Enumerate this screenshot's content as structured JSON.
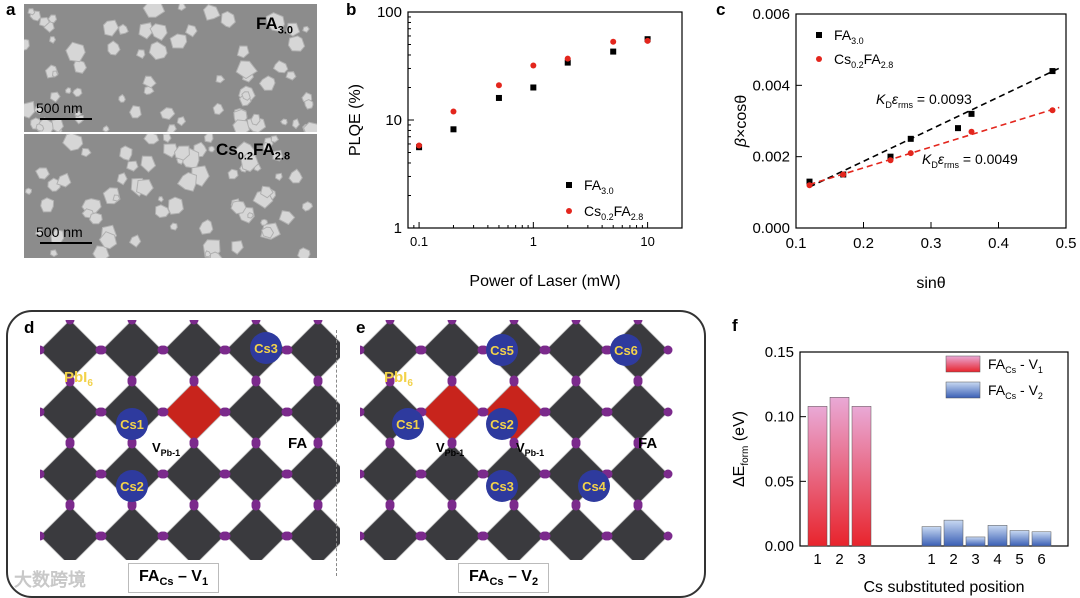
{
  "panels": {
    "a": {
      "letter": "a",
      "top_label": "FA",
      "top_sub": "3.0",
      "bottom_label_1": "Cs",
      "bottom_sub_1": "0.2",
      "bottom_label_2": "FA",
      "bottom_sub_2": "2.8",
      "scale_text_top": "500 nm",
      "scale_text_bottom": "500 nm"
    },
    "b": {
      "letter": "b"
    },
    "c": {
      "letter": "c"
    },
    "d": {
      "letter": "d",
      "pbi6": "PbI",
      "pbi6_sub": "6",
      "fa": "FA",
      "cs1": "Cs1",
      "cs2": "Cs2",
      "cs3": "Cs3",
      "vac": "V",
      "vac_sub": "Pb-1",
      "footer_main": "FA",
      "footer_sub": "Cs",
      "footer_tail": " – V",
      "footer_num": "1"
    },
    "e": {
      "letter": "e",
      "pbi6": "PbI",
      "pbi6_sub": "6",
      "fa": "FA",
      "cs1": "Cs1",
      "cs2": "Cs2",
      "cs3": "Cs3",
      "cs4": "Cs4",
      "cs5": "Cs5",
      "cs6": "Cs6",
      "vac": "V",
      "vac_sub": "Pb-1",
      "footer_main": "FA",
      "footer_sub": "Cs",
      "footer_tail": " – V",
      "footer_num": "2"
    },
    "f": {
      "letter": "f"
    }
  },
  "watermark": "大数跨境",
  "chart_data": [
    {
      "id": "b",
      "type": "scatter",
      "xlabel": "Power of Laser (mW)",
      "ylabel": "PLQE (%)",
      "xscale": "log",
      "yscale": "log",
      "xlim": [
        0.08,
        20
      ],
      "ylim": [
        1,
        100
      ],
      "xticks": [
        0.1,
        1,
        10
      ],
      "xtick_labels": [
        "0.1",
        "1",
        "10"
      ],
      "yticks": [
        1,
        10,
        100
      ],
      "ytick_labels": [
        "1",
        "10",
        "100"
      ],
      "legend_position": "bottom-right",
      "series": [
        {
          "name": "FA",
          "sub": "3.0",
          "color": "#000000",
          "marker": "square",
          "x": [
            0.1,
            0.2,
            0.5,
            1,
            2,
            5,
            10
          ],
          "y": [
            5.6,
            8.2,
            16,
            20,
            34,
            43,
            56
          ]
        },
        {
          "name": "Cs",
          "sub": "0.2",
          "name2": "FA",
          "sub2": "2.8",
          "color": "#e3261d",
          "marker": "circle",
          "x": [
            0.1,
            0.2,
            0.5,
            1,
            2,
            5,
            10
          ],
          "y": [
            5.8,
            12,
            21,
            32,
            37,
            53,
            54
          ]
        }
      ]
    },
    {
      "id": "c",
      "type": "scatter",
      "xlabel": "sinθ",
      "ylabel_pre": "β",
      "ylabel_post": "×cosθ",
      "xlim": [
        0.1,
        0.5
      ],
      "ylim": [
        0,
        0.006
      ],
      "xticks": [
        0.1,
        0.2,
        0.3,
        0.4,
        0.5
      ],
      "xtick_labels": [
        "0.1",
        "0.2",
        "0.3",
        "0.4",
        "0.5"
      ],
      "yticks": [
        0,
        0.002,
        0.004,
        0.006
      ],
      "ytick_labels": [
        "0.000",
        "0.002",
        "0.004",
        "0.006"
      ],
      "legend_position": "top-left",
      "series": [
        {
          "name": "FA",
          "sub": "3.0",
          "color": "#000000",
          "marker": "square",
          "x": [
            0.12,
            0.17,
            0.24,
            0.27,
            0.34,
            0.36,
            0.48
          ],
          "y": [
            0.0013,
            0.0015,
            0.002,
            0.0025,
            0.0028,
            0.0032,
            0.0044
          ],
          "fit": [
            [
              0.12,
              0.00115
            ],
            [
              0.49,
              0.00448
            ]
          ],
          "fit_label": "0.0093"
        },
        {
          "name": "Cs",
          "sub": "0.2",
          "name2": "FA",
          "sub2": "2.8",
          "color": "#e3261d",
          "marker": "circle",
          "x": [
            0.12,
            0.17,
            0.24,
            0.27,
            0.36,
            0.48
          ],
          "y": [
            0.0012,
            0.0015,
            0.0019,
            0.0021,
            0.0027,
            0.0033
          ],
          "fit": [
            [
              0.12,
              0.00122
            ],
            [
              0.49,
              0.00338
            ]
          ],
          "fit_label": "0.0049"
        }
      ],
      "annotation_prefix": "K",
      "annotation_sub": "D",
      "annotation_mid": "ε",
      "annotation_sub2": "rms",
      "annotation_eq": " = "
    },
    {
      "id": "f",
      "type": "bar",
      "xlabel": "Cs substituted position",
      "ylabel_pre": "ΔE",
      "ylabel_sub": "form",
      "ylabel_post": " (eV)",
      "ylim": [
        0,
        0.15
      ],
      "yticks": [
        0,
        0.05,
        0.1,
        0.15
      ],
      "ytick_labels": [
        "0.00",
        "0.05",
        "0.10",
        "0.15"
      ],
      "legend_position": "top-right",
      "series": [
        {
          "name": "FA",
          "sub": "Cs",
          "tail": " - V",
          "num": "1",
          "color_top": "#e9a9d6",
          "color_bottom": "#e8242c",
          "categories": [
            "1",
            "2",
            "3"
          ],
          "values": [
            0.108,
            0.115,
            0.108
          ]
        },
        {
          "name": "FA",
          "sub": "Cs",
          "tail": " - V",
          "num": "2",
          "color_top": "#c8d9f2",
          "color_bottom": "#3a5fb5",
          "categories": [
            "1",
            "2",
            "3",
            "4",
            "5",
            "6"
          ],
          "values": [
            0.015,
            0.02,
            0.007,
            0.016,
            0.012,
            0.011
          ]
        }
      ]
    }
  ]
}
